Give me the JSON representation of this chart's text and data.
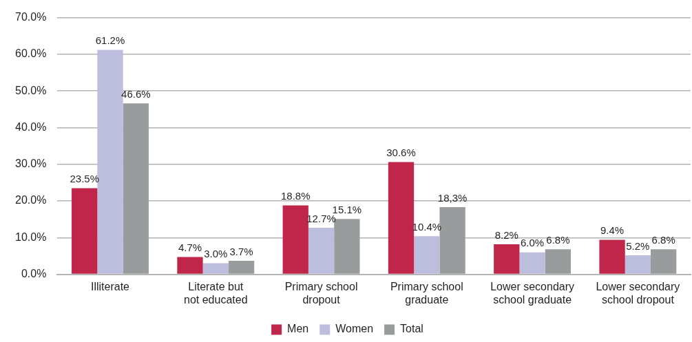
{
  "chart_data": {
    "type": "bar",
    "categories": [
      "Illiterate",
      "Literate but not educated",
      "Primary school dropout",
      "Primary school graduate",
      "Lower secondary school graduate",
      "Lower secondary school dropout"
    ],
    "series": [
      {
        "name": "Men",
        "color": "#c0254a",
        "values": [
          23.5,
          4.7,
          18.8,
          30.6,
          8.2,
          9.4
        ],
        "value_labels": [
          "23.5%",
          "4.7%",
          "18.8%",
          "30.6%",
          "8.2%",
          "9.4%"
        ]
      },
      {
        "name": "Women",
        "color": "#bdbedd",
        "values": [
          61.2,
          3.0,
          12.7,
          10.4,
          6.0,
          5.2
        ],
        "value_labels": [
          "61.2%",
          "3.0%",
          "12.7%",
          "10.4%",
          "6.0%",
          "5.2%"
        ]
      },
      {
        "name": "Total",
        "color": "#999c9c",
        "values": [
          46.6,
          3.7,
          15.1,
          18.3,
          6.8,
          6.8
        ],
        "value_labels": [
          "46.6%",
          "3.7%",
          "15.1%",
          "18,3%",
          "6.8%",
          "6.8%"
        ]
      }
    ],
    "ylim": [
      0,
      70
    ],
    "yticks": [
      {
        "value": 0,
        "label": "0.0%"
      },
      {
        "value": 10,
        "label": "10.0%"
      },
      {
        "value": 20,
        "label": "20.0%"
      },
      {
        "value": 30,
        "label": "30.0%"
      },
      {
        "value": 40,
        "label": "40.0%"
      },
      {
        "value": 50,
        "label": "50.0%"
      },
      {
        "value": 60,
        "label": "60.0%"
      },
      {
        "value": 70,
        "label": "70.0%"
      }
    ],
    "grid": "y",
    "legend": "bottom"
  }
}
